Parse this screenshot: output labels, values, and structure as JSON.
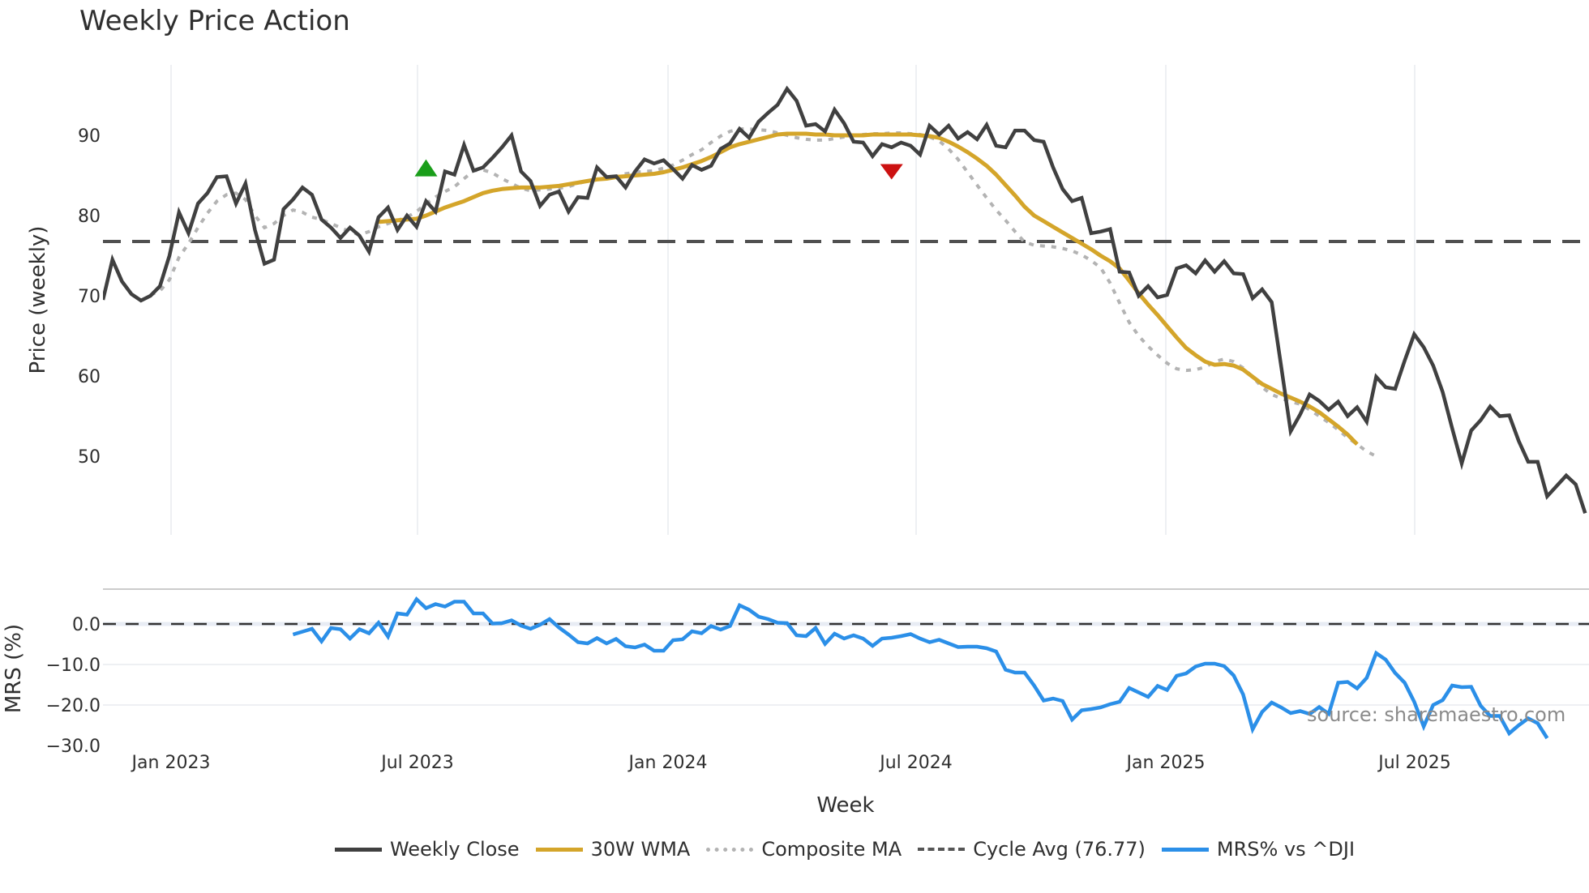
{
  "title": "Weekly Price Action",
  "source_note": "source: sharemaestro.com",
  "legend": [
    {
      "label": "Weekly Close",
      "color": "#404040",
      "style": "solid"
    },
    {
      "label": "30W WMA",
      "color": "#d4a52a",
      "style": "solid"
    },
    {
      "label": "Composite MA",
      "color": "#b3b3b3",
      "style": "dotted"
    },
    {
      "label": "Cycle Avg (76.77)",
      "color": "#555555",
      "style": "dashed"
    },
    {
      "label": "MRS% vs ^DJI",
      "color": "#2b8fe8",
      "style": "solid"
    }
  ],
  "axes": {
    "price_ylabel": "Price (weekly)",
    "mrs_ylabel": "MRS (%)",
    "xlabel": "Week",
    "price_ticks": [
      "90",
      "80",
      "70",
      "60",
      "50"
    ],
    "mrs_ticks": [
      "0.0",
      "−10.0",
      "−20.0",
      "−30.0"
    ],
    "x_ticks": [
      "Jan 2023",
      "Jul 2023",
      "Jan 2024",
      "Jul 2024",
      "Jan 2025",
      "Jul 2025"
    ]
  },
  "chart_data": [
    {
      "type": "line",
      "title": "Weekly Price Action",
      "xlabel": "Week",
      "ylabel": "Price (weekly)",
      "ylim": [
        40,
        98
      ],
      "x_ticks": [
        "Jan 2023",
        "Jul 2023",
        "Jan 2024",
        "Jul 2024",
        "Jan 2025",
        "Jul 2025"
      ],
      "grid": true,
      "legend_position": "bottom",
      "hline": {
        "name": "Cycle Avg (76.77)",
        "value": 76.77
      },
      "markers": [
        {
          "type": "buy",
          "shape": "triangle-up",
          "color": "#1a9e1a",
          "week_index": 34,
          "value": 85.8
        },
        {
          "type": "sell",
          "shape": "triangle-down",
          "color": "#cc1111",
          "week_index": 83,
          "value": 85.5
        }
      ],
      "series": [
        {
          "name": "Weekly Close",
          "start_index": 0,
          "values": [
            69.5,
            74.5,
            71.8,
            70.2,
            69.4,
            70.0,
            71.2,
            75.0,
            80.4,
            77.8,
            81.5,
            82.8,
            84.8,
            84.9,
            81.5,
            84.0,
            78.2,
            74.0,
            74.5,
            80.8,
            82.0,
            83.5,
            82.6,
            79.5,
            78.5,
            77.2,
            78.5,
            77.5,
            75.5,
            79.8,
            81.0,
            78.2,
            80.0,
            78.6,
            81.8,
            80.5,
            85.5,
            85.1,
            88.8,
            85.6,
            86.0,
            87.2,
            88.5,
            90.0,
            85.5,
            84.3,
            81.2,
            82.6,
            83.0,
            80.5,
            82.3,
            82.2,
            86.0,
            84.8,
            84.9,
            83.5,
            85.5,
            87.0,
            86.5,
            86.9,
            85.8,
            84.6,
            86.3,
            85.7,
            86.2,
            88.3,
            89.0,
            90.8,
            89.7,
            91.7,
            92.8,
            93.8,
            95.8,
            94.3,
            91.2,
            91.4,
            90.5,
            93.2,
            91.5,
            89.2,
            89.1,
            87.4,
            88.9,
            88.5,
            89.1,
            88.7,
            87.6,
            91.2,
            90.1,
            91.2,
            89.6,
            90.4,
            89.5,
            91.3,
            88.7,
            88.5,
            90.6,
            90.6,
            89.4,
            89.2,
            86.0,
            83.3,
            81.8,
            82.2,
            77.8,
            78.0,
            78.3,
            73.0,
            72.9,
            70.0,
            71.2,
            69.8,
            70.1,
            73.4,
            73.8,
            72.8,
            74.4,
            73.0,
            74.3,
            72.8,
            72.7,
            69.7,
            70.8,
            69.2,
            61.2,
            53.1,
            55.2,
            57.7,
            56.9,
            55.8,
            56.8,
            55.0,
            56.1,
            54.3,
            59.9,
            58.6,
            58.4,
            61.9,
            65.2,
            63.6,
            61.3,
            58.0,
            53.5,
            49.1,
            53.2,
            54.5,
            56.2,
            55.0,
            55.1,
            51.9,
            49.3,
            49.3,
            45.0,
            46.3,
            47.6,
            46.5,
            42.9
          ]
        },
        {
          "name": "30W WMA",
          "start_index": 23,
          "values": [
            null,
            null,
            null,
            null,
            null,
            null,
            79.2,
            79.3,
            79.4,
            79.5,
            79.6,
            80.0,
            80.5,
            81.0,
            81.4,
            81.8,
            82.3,
            82.8,
            83.1,
            83.3,
            83.4,
            83.5,
            83.5,
            83.5,
            83.6,
            83.7,
            83.9,
            84.1,
            84.3,
            84.5,
            84.6,
            84.8,
            84.9,
            85.0,
            85.1,
            85.2,
            85.4,
            85.7,
            86.0,
            86.4,
            86.8,
            87.3,
            87.9,
            88.5,
            88.9,
            89.2,
            89.5,
            89.8,
            90.1,
            90.2,
            90.2,
            90.2,
            90.1,
            90.1,
            90.0,
            90.0,
            90.0,
            90.0,
            90.1,
            90.1,
            90.1,
            90.1,
            90.1,
            90.0,
            89.9,
            89.7,
            89.2,
            88.6,
            87.9,
            87.1,
            86.2,
            85.1,
            83.8,
            82.5,
            81.1,
            80.0,
            79.3,
            78.6,
            77.9,
            77.2,
            76.5,
            75.8,
            75.0,
            74.3,
            73.4,
            71.9,
            70.3,
            68.9,
            67.6,
            66.2,
            64.8,
            63.5,
            62.6,
            61.8,
            61.4,
            61.5,
            61.3,
            60.8,
            59.9,
            59.0,
            58.4,
            57.8,
            57.3,
            56.8,
            56.2,
            55.5,
            54.6,
            53.7,
            52.7,
            51.5
          ]
        },
        {
          "name": "Composite MA",
          "start_index": 5,
          "values": [
            70.1,
            70.6,
            72.0,
            74.8,
            76.5,
            78.5,
            80.3,
            81.8,
            82.6,
            82.8,
            82.0,
            80.0,
            78.5,
            79.0,
            80.0,
            80.7,
            80.4,
            79.8,
            79.5,
            79.0,
            78.5,
            78.0,
            77.6,
            78.0,
            78.6,
            79.0,
            79.4,
            79.8,
            80.5,
            81.5,
            82.3,
            83.0,
            83.6,
            84.6,
            85.6,
            85.7,
            85.3,
            84.6,
            84.0,
            83.4,
            83.1,
            83.2,
            83.3,
            83.4,
            83.6,
            84.0,
            84.3,
            84.5,
            84.7,
            84.9,
            85.2,
            85.4,
            85.5,
            85.6,
            85.9,
            86.3,
            86.9,
            87.6,
            88.2,
            89.1,
            89.9,
            90.5,
            90.8,
            90.8,
            90.7,
            90.6,
            90.3,
            90.0,
            89.7,
            89.5,
            89.4,
            89.4,
            89.6,
            89.8,
            90.0,
            90.1,
            90.2,
            90.2,
            90.3,
            90.3,
            90.2,
            90.1,
            89.8,
            89.3,
            88.3,
            87.0,
            85.4,
            83.8,
            82.2,
            80.7,
            79.4,
            78.0,
            76.7,
            76.3,
            76.2,
            76.1,
            75.9,
            75.6,
            75.1,
            74.4,
            73.5,
            71.6,
            69.1,
            66.7,
            65.0,
            63.7,
            62.6,
            61.6,
            60.9,
            60.7,
            60.8,
            61.1,
            61.8,
            62.1,
            61.8,
            61.0,
            59.9,
            58.6,
            57.7,
            57.2,
            56.8,
            56.5,
            55.8,
            55.0,
            54.2,
            53.3,
            52.3,
            51.5,
            50.6,
            50.0
          ]
        },
        {
          "name": "Cycle Avg (76.77)",
          "constant": 76.77
        }
      ]
    },
    {
      "type": "line",
      "title": "",
      "ylabel": "MRS (%)",
      "ylim": [
        -31,
        8
      ],
      "hline": {
        "value": 0.0,
        "style": "dashed"
      },
      "series": [
        {
          "name": "MRS% vs ^DJI",
          "start_index": 20,
          "values": [
            -2.6,
            -1.9,
            -1.2,
            -4.3,
            -1.0,
            -1.3,
            -3.6,
            -1.3,
            -2.3,
            0.3,
            -3.1,
            2.6,
            2.3,
            6.1,
            3.9,
            4.9,
            4.3,
            5.5,
            5.5,
            2.6,
            2.6,
            0.1,
            0.2,
            0.9,
            -0.4,
            -1.2,
            -0.2,
            1.2,
            -0.9,
            -2.6,
            -4.5,
            -4.8,
            -3.5,
            -4.8,
            -3.7,
            -5.5,
            -5.8,
            -5.1,
            -6.6,
            -6.6,
            -4.0,
            -3.8,
            -1.8,
            -2.3,
            -0.5,
            -1.4,
            -0.5,
            4.6,
            3.5,
            1.8,
            1.2,
            0.3,
            0.2,
            -2.8,
            -3.0,
            -1.0,
            -4.9,
            -2.4,
            -3.6,
            -2.8,
            -3.6,
            -5.4,
            -3.6,
            -3.4,
            -3.0,
            -2.5,
            -3.6,
            -4.5,
            -3.9,
            -4.8,
            -5.7,
            -5.6,
            -5.6,
            -6.0,
            -6.8,
            -11.3,
            -12.0,
            -12.0,
            -15.2,
            -18.9,
            -18.4,
            -19.0,
            -23.6,
            -21.3,
            -21.0,
            -20.6,
            -19.8,
            -19.2,
            -15.8,
            -16.9,
            -18.0,
            -15.3,
            -16.3,
            -12.8,
            -12.2,
            -10.5,
            -9.8,
            -9.8,
            -10.4,
            -12.7,
            -17.4,
            -26.0,
            -21.7,
            -19.4,
            -20.6,
            -22.0,
            -21.5,
            -22.2,
            -20.5,
            -22.2,
            -14.5,
            -14.3,
            -15.9,
            -13.3,
            -7.2,
            -8.8,
            -12.1,
            -14.5,
            -19.2,
            -25.3,
            -20.0,
            -18.8,
            -15.2,
            -15.6,
            -15.5,
            -20.2,
            -22.7,
            -22.7,
            -27.0,
            -25.0,
            -23.3,
            -24.5,
            -28.2
          ]
        }
      ]
    }
  ]
}
